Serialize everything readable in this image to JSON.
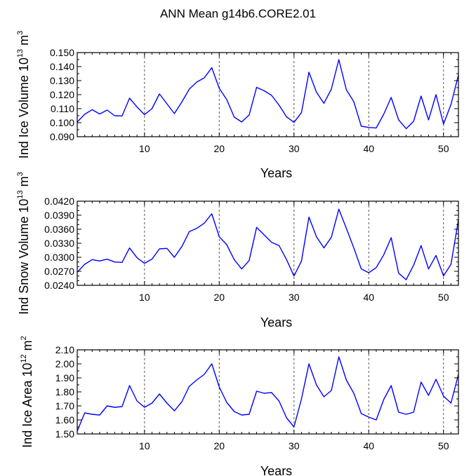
{
  "title": "ANN Mean g14b6.CORE2.01",
  "chart_data": [
    {
      "type": "line",
      "ylabel_parts": {
        "main": "Ind Ice Volume 10",
        "exp": "13",
        "unit": " m",
        "unit_exp": "3"
      },
      "xlabel": "Years",
      "xlim": [
        1,
        52
      ],
      "xticks": [
        10,
        20,
        30,
        40,
        50
      ],
      "ylim": [
        0.09,
        0.15
      ],
      "yticks": [
        0.09,
        0.1,
        0.11,
        0.12,
        0.13,
        0.14,
        0.15
      ],
      "ytick_labels": [
        "0.090",
        "0.100",
        "0.110",
        "0.120",
        "0.130",
        "0.140",
        "0.150"
      ],
      "ygrid_minor_step": 0.005,
      "line_color": "#0000ff",
      "x": [
        1,
        2,
        3,
        4,
        5,
        6,
        7,
        8,
        9,
        10,
        11,
        12,
        13,
        14,
        15,
        16,
        17,
        18,
        19,
        20,
        21,
        22,
        23,
        24,
        25,
        26,
        27,
        28,
        29,
        30,
        31,
        32,
        33,
        34,
        35,
        36,
        37,
        38,
        39,
        40,
        41,
        42,
        43,
        44,
        45,
        46,
        47,
        48,
        49,
        50,
        51,
        52
      ],
      "values": [
        0.1005,
        0.106,
        0.1093,
        0.1062,
        0.109,
        0.105,
        0.1048,
        0.1175,
        0.1112,
        0.1057,
        0.11,
        0.1205,
        0.1135,
        0.1065,
        0.1148,
        0.124,
        0.129,
        0.132,
        0.1392,
        0.1245,
        0.1165,
        0.104,
        0.1005,
        0.1055,
        0.1252,
        0.1228,
        0.1195,
        0.1125,
        0.1042,
        0.1002,
        0.1072,
        0.136,
        0.1218,
        0.1138,
        0.124,
        0.145,
        0.1235,
        0.115,
        0.0975,
        0.0966,
        0.0962,
        0.106,
        0.118,
        0.102,
        0.0957,
        0.101,
        0.119,
        0.102,
        0.12,
        0.099,
        0.113,
        0.134
      ]
    },
    {
      "type": "line",
      "ylabel_parts": {
        "main": "Ind Snow Volume 10",
        "exp": "13",
        "unit": " m",
        "unit_exp": "3"
      },
      "xlabel": "Years",
      "xlim": [
        1,
        52
      ],
      "xticks": [
        10,
        20,
        30,
        40,
        50
      ],
      "ylim": [
        0.024,
        0.042
      ],
      "yticks": [
        0.024,
        0.027,
        0.03,
        0.033,
        0.036,
        0.039,
        0.042
      ],
      "ytick_labels": [
        "0.0240",
        "0.0270",
        "0.0300",
        "0.0330",
        "0.0360",
        "0.0390",
        "0.0420"
      ],
      "ygrid_minor_step": 0.001,
      "line_color": "#0000ff",
      "x": [
        1,
        2,
        3,
        4,
        5,
        6,
        7,
        8,
        9,
        10,
        11,
        12,
        13,
        14,
        15,
        16,
        17,
        18,
        19,
        20,
        21,
        22,
        23,
        24,
        25,
        26,
        27,
        28,
        29,
        30,
        31,
        32,
        33,
        34,
        35,
        36,
        37,
        38,
        39,
        40,
        41,
        42,
        43,
        44,
        45,
        46,
        47,
        48,
        49,
        50,
        51,
        52
      ],
      "values": [
        0.0268,
        0.0285,
        0.0295,
        0.0292,
        0.0296,
        0.029,
        0.0289,
        0.032,
        0.0299,
        0.0287,
        0.0296,
        0.0318,
        0.0319,
        0.03,
        0.0323,
        0.0355,
        0.0362,
        0.0373,
        0.0393,
        0.0344,
        0.0327,
        0.0295,
        0.0275,
        0.0293,
        0.0364,
        0.0348,
        0.0332,
        0.0325,
        0.0295,
        0.026,
        0.0292,
        0.0386,
        0.0344,
        0.032,
        0.0343,
        0.0403,
        0.0362,
        0.032,
        0.0275,
        0.0267,
        0.0278,
        0.0305,
        0.0342,
        0.0266,
        0.0252,
        0.0283,
        0.0325,
        0.0275,
        0.0304,
        0.026,
        0.0285,
        0.038
      ]
    },
    {
      "type": "line",
      "ylabel_parts": {
        "main": "Ind Ice Area 10",
        "exp": "12",
        "unit": " m",
        "unit_exp": "2"
      },
      "xlabel": "Years",
      "xlim": [
        1,
        52
      ],
      "xticks": [
        10,
        20,
        30,
        40,
        50
      ],
      "ylim": [
        1.5,
        2.1
      ],
      "yticks": [
        1.5,
        1.6,
        1.7,
        1.8,
        1.9,
        2.0,
        2.1
      ],
      "ytick_labels": [
        "1.50",
        "1.60",
        "1.70",
        "1.80",
        "1.90",
        "2.00",
        "2.10"
      ],
      "ygrid_minor_step": 0.05,
      "line_color": "#0000ff",
      "x": [
        1,
        2,
        3,
        4,
        5,
        6,
        7,
        8,
        9,
        10,
        11,
        12,
        13,
        14,
        15,
        16,
        17,
        18,
        19,
        20,
        21,
        22,
        23,
        24,
        25,
        26,
        27,
        28,
        29,
        30,
        31,
        32,
        33,
        34,
        35,
        36,
        37,
        38,
        39,
        40,
        41,
        42,
        43,
        44,
        45,
        46,
        47,
        48,
        49,
        50,
        51,
        52
      ],
      "values": [
        1.52,
        1.65,
        1.64,
        1.635,
        1.7,
        1.69,
        1.695,
        1.845,
        1.735,
        1.69,
        1.72,
        1.785,
        1.72,
        1.665,
        1.73,
        1.84,
        1.885,
        1.925,
        2.0,
        1.835,
        1.725,
        1.66,
        1.635,
        1.64,
        1.805,
        1.79,
        1.795,
        1.735,
        1.615,
        1.55,
        1.75,
        2.0,
        1.85,
        1.765,
        1.81,
        2.05,
        1.885,
        1.79,
        1.645,
        1.62,
        1.6,
        1.745,
        1.845,
        1.655,
        1.64,
        1.655,
        1.87,
        1.775,
        1.89,
        1.77,
        1.72,
        1.925
      ]
    }
  ]
}
